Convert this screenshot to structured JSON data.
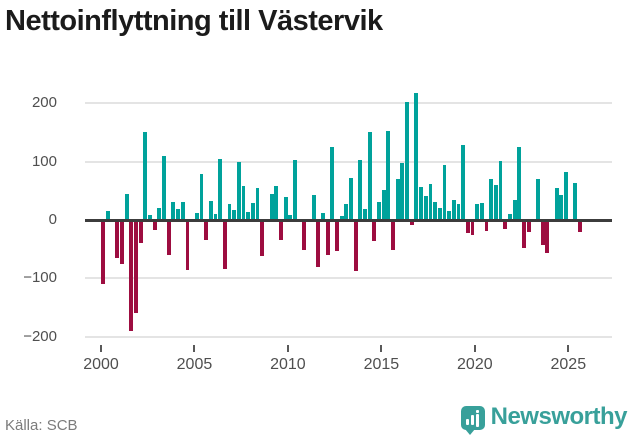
{
  "header": {
    "title": "Nettoinflyttning till Västervik"
  },
  "footer": {
    "source": "Källa: SCB",
    "brand_name": "Newsworthy"
  },
  "colors": {
    "positive": "#00a29b",
    "negative": "#9d0d40",
    "grid": "#e4e4e4",
    "zero_axis": "#3c3c3c",
    "tick_text": "#4f4f4f",
    "title_text": "#1b1b1b",
    "source_text": "#7b7b7b",
    "brand": "#38a09a"
  },
  "chart_data": {
    "type": "bar",
    "title": "Nettoinflyttning till Västervik",
    "frequency": "quarterly",
    "start_period": "2000Q1",
    "end_period": "2025Q3",
    "grid": "horizontal",
    "legend": "none",
    "x_tick_years": [
      2000,
      2005,
      2010,
      2015,
      2020,
      2025
    ],
    "x_tick_labels": [
      "2000",
      "2005",
      "2010",
      "2015",
      "2020",
      "2025"
    ],
    "y_tick_values": [
      200,
      100,
      0,
      -100,
      -200
    ],
    "y_tick_labels": [
      "200",
      "100",
      "0",
      "−100",
      "−200"
    ],
    "ylim": [
      -226,
      231
    ],
    "values": [
      -110,
      15,
      0,
      -65,
      -75,
      45,
      -190,
      -160,
      -40,
      150,
      8,
      -17,
      20,
      110,
      -60,
      30,
      18,
      30,
      -85,
      0,
      12,
      78,
      -34,
      33,
      10,
      105,
      -84,
      27,
      17,
      99,
      58,
      14,
      29,
      55,
      -62,
      0,
      45,
      58,
      -34,
      39,
      9,
      103,
      0,
      -52,
      0,
      43,
      -80,
      12,
      -60,
      125,
      -53,
      7,
      27,
      72,
      -87,
      103,
      19,
      150,
      -36,
      31,
      51,
      152,
      -51,
      70,
      98,
      202,
      -9,
      217,
      57,
      41,
      62,
      31,
      21,
      94,
      15,
      34,
      27,
      128,
      -22,
      -26,
      27,
      29,
      -18,
      70,
      60,
      101,
      -15,
      10,
      34,
      125,
      -48,
      -21,
      0,
      70,
      -43,
      -57,
      0,
      55,
      43,
      82,
      0,
      63,
      -21
    ]
  }
}
